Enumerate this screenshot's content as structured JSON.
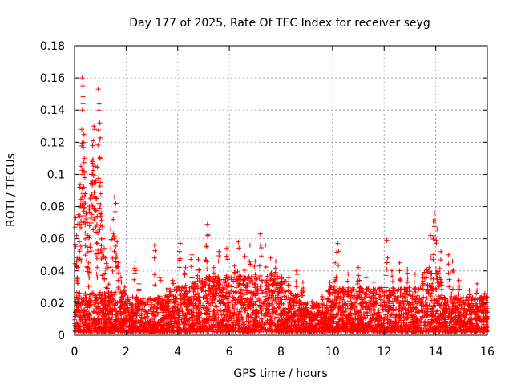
{
  "chart_data": {
    "type": "scatter",
    "title": "Day 177 of 2025, Rate Of TEC Index for receiver seyg",
    "xlabel": "GPS time / hours",
    "ylabel": "ROTI / TECUs",
    "xlim": [
      0,
      16
    ],
    "ylim": [
      0,
      0.18
    ],
    "xticks": [
      0,
      2,
      4,
      6,
      8,
      10,
      12,
      14,
      16
    ],
    "xtick_labels": [
      "0",
      "2",
      "4",
      "6",
      "8",
      "10",
      "12",
      "14",
      "16"
    ],
    "yticks": [
      0,
      0.02,
      0.04,
      0.06,
      0.08,
      0.1,
      0.12,
      0.14,
      0.16,
      0.18
    ],
    "ytick_labels": [
      "0",
      "0.02",
      "0.04",
      "0.06",
      "0.08",
      "0.1",
      "0.12",
      "0.14",
      "0.16",
      "0.18"
    ],
    "grid": true,
    "marker": "+",
    "color": "#ff0000",
    "series": [
      {
        "name": "ROTI",
        "points": [
          [
            0.05,
            0.073
          ],
          [
            0.08,
            0.062
          ],
          [
            0.1,
            0.048
          ],
          [
            0.12,
            0.035
          ],
          [
            0.15,
            0.075
          ],
          [
            0.18,
            0.066
          ],
          [
            0.2,
            0.092
          ],
          [
            0.22,
            0.08
          ],
          [
            0.25,
            0.105
          ],
          [
            0.28,
            0.128
          ],
          [
            0.3,
            0.16
          ],
          [
            0.32,
            0.155
          ],
          [
            0.33,
            0.144
          ],
          [
            0.35,
            0.12
          ],
          [
            0.38,
            0.11
          ],
          [
            0.4,
            0.098
          ],
          [
            0.42,
            0.088
          ],
          [
            0.45,
            0.076
          ],
          [
            0.5,
            0.07
          ],
          [
            0.52,
            0.062
          ],
          [
            0.55,
            0.045
          ],
          [
            0.6,
            0.086
          ],
          [
            0.62,
            0.094
          ],
          [
            0.65,
            0.1
          ],
          [
            0.68,
            0.108
          ],
          [
            0.7,
            0.118
          ],
          [
            0.72,
            0.121
          ],
          [
            0.75,
            0.13
          ],
          [
            0.78,
            0.128
          ],
          [
            0.8,
            0.105
          ],
          [
            0.82,
            0.095
          ],
          [
            0.85,
            0.085
          ],
          [
            0.88,
            0.074
          ],
          [
            0.9,
            0.064
          ],
          [
            0.92,
            0.153
          ],
          [
            0.95,
            0.14
          ],
          [
            0.98,
            0.132
          ],
          [
            1.0,
            0.095
          ],
          [
            1.02,
            0.088
          ],
          [
            1.05,
            0.076
          ],
          [
            1.1,
            0.06
          ],
          [
            1.15,
            0.054
          ],
          [
            1.2,
            0.048
          ],
          [
            1.3,
            0.042
          ],
          [
            1.4,
            0.066
          ],
          [
            1.5,
            0.072
          ],
          [
            1.55,
            0.086
          ],
          [
            1.6,
            0.082
          ],
          [
            1.65,
            0.058
          ],
          [
            1.7,
            0.045
          ],
          [
            1.8,
            0.036
          ],
          [
            1.95,
            0.03
          ],
          [
            2.35,
            0.046
          ],
          [
            2.5,
            0.032
          ],
          [
            3.1,
            0.056
          ],
          [
            3.3,
            0.036
          ],
          [
            3.8,
            0.034
          ],
          [
            4.1,
            0.057
          ],
          [
            4.3,
            0.042
          ],
          [
            4.55,
            0.05
          ],
          [
            4.8,
            0.047
          ],
          [
            5.1,
            0.056
          ],
          [
            5.15,
            0.069
          ],
          [
            5.4,
            0.042
          ],
          [
            5.6,
            0.052
          ],
          [
            5.9,
            0.054
          ],
          [
            6.2,
            0.043
          ],
          [
            6.35,
            0.058
          ],
          [
            6.6,
            0.049
          ],
          [
            6.8,
            0.056
          ],
          [
            7.0,
            0.046
          ],
          [
            7.2,
            0.063
          ],
          [
            7.4,
            0.056
          ],
          [
            7.6,
            0.048
          ],
          [
            7.8,
            0.046
          ],
          [
            8.0,
            0.038
          ],
          [
            8.3,
            0.036
          ],
          [
            8.6,
            0.04
          ],
          [
            8.85,
            0.033
          ],
          [
            9.2,
            0.021
          ],
          [
            9.6,
            0.024
          ],
          [
            9.9,
            0.033
          ],
          [
            10.1,
            0.045
          ],
          [
            10.2,
            0.057
          ],
          [
            10.6,
            0.038
          ],
          [
            11.0,
            0.042
          ],
          [
            11.3,
            0.036
          ],
          [
            11.6,
            0.033
          ],
          [
            12.1,
            0.059
          ],
          [
            12.3,
            0.04
          ],
          [
            12.6,
            0.045
          ],
          [
            12.9,
            0.041
          ],
          [
            13.2,
            0.038
          ],
          [
            13.5,
            0.036
          ],
          [
            13.8,
            0.062
          ],
          [
            13.9,
            0.071
          ],
          [
            13.95,
            0.076
          ],
          [
            14.05,
            0.066
          ],
          [
            14.2,
            0.052
          ],
          [
            14.5,
            0.05
          ],
          [
            14.65,
            0.046
          ],
          [
            14.9,
            0.034
          ],
          [
            15.3,
            0.028
          ],
          [
            15.6,
            0.032
          ],
          [
            15.9,
            0.026
          ]
        ],
        "dense_band": [
          {
            "x_start": 0.0,
            "x_end": 2.0,
            "y_min": 0.0,
            "y_max": 0.025
          },
          {
            "x_start": 2.0,
            "x_end": 3.5,
            "y_min": 0.0,
            "y_max": 0.022
          },
          {
            "x_start": 3.5,
            "x_end": 4.5,
            "y_min": 0.0,
            "y_max": 0.028
          },
          {
            "x_start": 4.5,
            "x_end": 8.2,
            "y_min": 0.0,
            "y_max": 0.035
          },
          {
            "x_start": 8.2,
            "x_end": 8.9,
            "y_min": 0.0,
            "y_max": 0.025
          },
          {
            "x_start": 8.9,
            "x_end": 9.8,
            "y_min": 0.0,
            "y_max": 0.018
          },
          {
            "x_start": 9.8,
            "x_end": 13.5,
            "y_min": 0.0,
            "y_max": 0.028
          },
          {
            "x_start": 13.5,
            "x_end": 14.3,
            "y_min": 0.0,
            "y_max": 0.04
          },
          {
            "x_start": 14.3,
            "x_end": 16.0,
            "y_min": 0.0,
            "y_max": 0.022
          }
        ]
      }
    ]
  }
}
